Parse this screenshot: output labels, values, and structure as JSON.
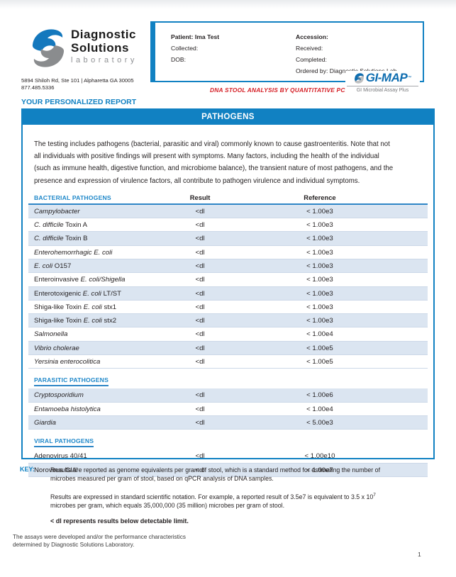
{
  "header": {
    "logo": {
      "line1": "Diagnostic",
      "line2": "Solutions",
      "line3": "laboratory"
    },
    "address1": "5894 Shiloh Rd, Ste 101 | Alpharetta GA 30005",
    "address2": "877.485.5336",
    "patient_box": {
      "patient": "Patient: Ima Test",
      "collected": "Collected:",
      "dob": "DOB:",
      "accession": "Accession:",
      "received": "Received:",
      "completed": "Completed:",
      "ordered_by": "Ordered by: Diagnostic Solutions Lab"
    },
    "report_type": "DNA STOOL ANALYSIS BY QUANTITATIVE PCR",
    "gimap": {
      "name": "GI-MAP",
      "tm": "™",
      "tagline": "GI Microbial Assay Plus"
    }
  },
  "report": {
    "personalized_title": "YOUR PERSONALIZED REPORT",
    "section_title": "PATHOGENS",
    "intro": "The testing includes pathogens (bacterial, parasitic and viral) commonly known to cause gastroenteritis. Note that not\nall individuals with positive findings will present with symptoms. Many factors, including the health of the individual\n(such as immune health, digestive function, and microbiome balance), the transient nature of most pathogens, and the\npresence and expression of virulence factors, all contribute to pathogen virulence and individual symptoms.",
    "columns": {
      "result": "Result",
      "reference": "Reference"
    },
    "groups": [
      {
        "label": "BACTERIAL PATHOGENS",
        "show_columns": true,
        "rows": [
          {
            "parts": [
              {
                "t": "Campylobacter",
                "i": true
              }
            ],
            "result": "<dl",
            "reference": "< 1.00e3",
            "shaded": true
          },
          {
            "parts": [
              {
                "t": "C. difficile",
                "i": true
              },
              {
                "t": " Toxin A",
                "i": false
              }
            ],
            "result": "<dl",
            "reference": "< 1.00e3",
            "shaded": false
          },
          {
            "parts": [
              {
                "t": "C. difficile",
                "i": true
              },
              {
                "t": " Toxin B",
                "i": false
              }
            ],
            "result": "<dl",
            "reference": "< 1.00e3",
            "shaded": true
          },
          {
            "parts": [
              {
                "t": "Enterohemorrhagic E. coli",
                "i": true
              }
            ],
            "result": "<dl",
            "reference": "< 1.00e3",
            "shaded": false
          },
          {
            "parts": [
              {
                "t": "E. coli",
                "i": true
              },
              {
                "t": " O157",
                "i": false
              }
            ],
            "result": "<dl",
            "reference": "< 1.00e3",
            "shaded": true
          },
          {
            "parts": [
              {
                "t": "Enteroinvasive ",
                "i": false
              },
              {
                "t": "E. coli/Shigella",
                "i": true
              }
            ],
            "result": "<dl",
            "reference": "< 1.00e3",
            "shaded": false
          },
          {
            "parts": [
              {
                "t": "Enterotoxigenic ",
                "i": false
              },
              {
                "t": "E. coli",
                "i": true
              },
              {
                "t": " LT/ST",
                "i": false
              }
            ],
            "result": "<dl",
            "reference": "< 1.00e3",
            "shaded": true
          },
          {
            "parts": [
              {
                "t": "Shiga-like Toxin ",
                "i": false
              },
              {
                "t": "E. coli",
                "i": true
              },
              {
                "t": " stx1",
                "i": false
              }
            ],
            "result": "<dl",
            "reference": "< 1.00e3",
            "shaded": false
          },
          {
            "parts": [
              {
                "t": "Shiga-like Toxin ",
                "i": false
              },
              {
                "t": "E. coli",
                "i": true
              },
              {
                "t": " stx2",
                "i": false
              }
            ],
            "result": "<dl",
            "reference": "< 1.00e3",
            "shaded": true
          },
          {
            "parts": [
              {
                "t": "Salmonella",
                "i": true
              }
            ],
            "result": "<dl",
            "reference": "< 1.00e4",
            "shaded": false
          },
          {
            "parts": [
              {
                "t": "Vibrio cholerae",
                "i": true
              }
            ],
            "result": "<dl",
            "reference": "< 1.00e5",
            "shaded": true
          },
          {
            "parts": [
              {
                "t": "Yersinia enterocolitica",
                "i": true
              }
            ],
            "result": "<dl",
            "reference": "< 1.00e5",
            "shaded": false
          }
        ]
      },
      {
        "label": "PARASITIC PATHOGENS",
        "show_columns": false,
        "rows": [
          {
            "parts": [
              {
                "t": "Cryptosporidium",
                "i": true
              }
            ],
            "result": "<dl",
            "reference": "< 1.00e6",
            "shaded": true
          },
          {
            "parts": [
              {
                "t": "Entamoeba histolytica",
                "i": true
              }
            ],
            "result": "<dl",
            "reference": "< 1.00e4",
            "shaded": false
          },
          {
            "parts": [
              {
                "t": "Giardia",
                "i": true
              }
            ],
            "result": "<dl",
            "reference": "< 5.00e3",
            "shaded": true
          }
        ]
      },
      {
        "label": "VIRAL PATHOGENS",
        "show_columns": false,
        "rows": [
          {
            "parts": [
              {
                "t": "Adenovirus 40/41",
                "i": false
              }
            ],
            "result": "<dl",
            "reference": "< 1.00e10",
            "shaded": false
          },
          {
            "parts": [
              {
                "t": "Norovirus GI/II",
                "i": false
              }
            ],
            "result": "<dl",
            "reference": "< 1.00e7",
            "shaded": true
          }
        ]
      }
    ]
  },
  "key": {
    "label": "KEY:",
    "p1": "Results are reported as genome equivalents per gram of stool, which is a standard method for estimating the number of\nmicrobes measured per gram of stool, based on qPCR analysis of DNA samples.",
    "p2_line1": "Results are expressed in standard scientific notation. For example, a reported result of 3.5e7 is equivalent to 3.5 x 10",
    "p2_sup": "7",
    "p2_line2": "microbes per gram, which equals 35,000,000 (35 million) microbes per gram of stool.",
    "note": "< dl represents results below detectable limit."
  },
  "footer": {
    "text": "The assays were developed and/or the performance characteristics\ndetermined by Diagnostic Solutions Laboratory.",
    "page": "1"
  },
  "colors": {
    "accent_blue": "#1181c2",
    "row_shade": "#dbe5f1",
    "report_type_red": "#d51f26",
    "gimap_blue": "#0e6db0"
  }
}
